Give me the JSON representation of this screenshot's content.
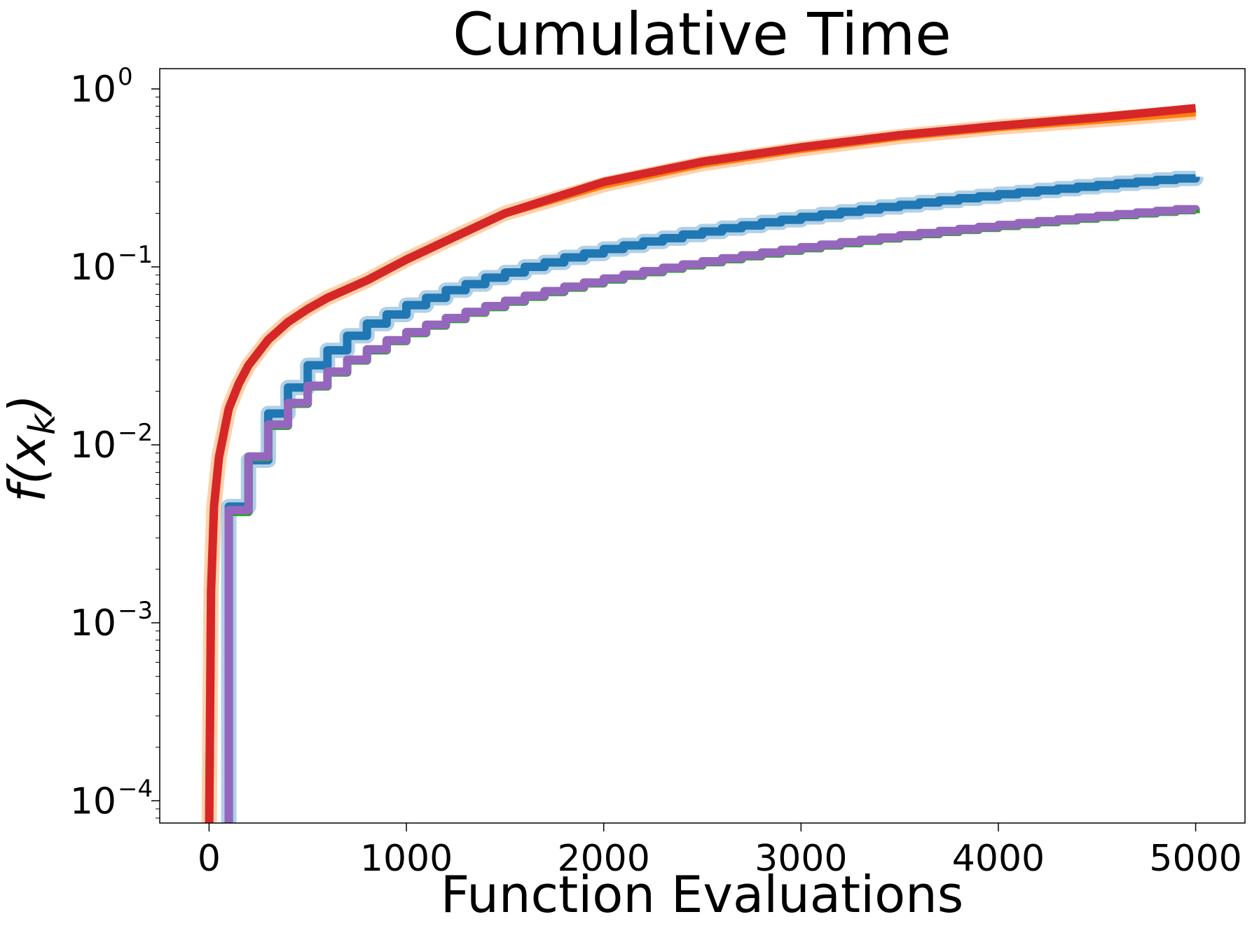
{
  "chart_data": {
    "type": "line",
    "title": "Cumulative Time",
    "xlabel": "Function Evaluations",
    "ylabel": "f(x_k)",
    "ylabel_display": {
      "base": "f(x",
      "sub": "k",
      "close": ")"
    },
    "xscale": "linear",
    "yscale": "log",
    "xlim": [
      -250,
      5250
    ],
    "ylim": [
      7.5e-05,
      1.3
    ],
    "x_ticks": [
      {
        "value": 0,
        "label": "0"
      },
      {
        "value": 1000,
        "label": "1000"
      },
      {
        "value": 2000,
        "label": "2000"
      },
      {
        "value": 3000,
        "label": "3000"
      },
      {
        "value": 4000,
        "label": "4000"
      },
      {
        "value": 5000,
        "label": "5000"
      }
    ],
    "y_ticks": [
      {
        "value": 0.0001,
        "base": "10",
        "exp": "−4"
      },
      {
        "value": 0.001,
        "base": "10",
        "exp": "−3"
      },
      {
        "value": 0.01,
        "base": "10",
        "exp": "−2"
      },
      {
        "value": 0.1,
        "base": "10",
        "exp": "−1"
      },
      {
        "value": 1,
        "base": "10",
        "exp": "0"
      }
    ],
    "grid": false,
    "legend": "none",
    "series": [
      {
        "color": "#ff7f0e",
        "style": "smooth",
        "band": true,
        "x": [
          0,
          10,
          25,
          50,
          100,
          150,
          200,
          300,
          400,
          500,
          600,
          800,
          1000,
          1500,
          2000,
          2500,
          3000,
          3500,
          4000,
          4500,
          5000
        ],
        "y": [
          6e-05,
          0.0015,
          0.0045,
          0.0085,
          0.016,
          0.022,
          0.028,
          0.039,
          0.049,
          0.058,
          0.067,
          0.084,
          0.11,
          0.2,
          0.29,
          0.38,
          0.46,
          0.54,
          0.61,
          0.67,
          0.74
        ]
      },
      {
        "color": "#d62728",
        "style": "smooth",
        "band": false,
        "x": [
          0,
          10,
          25,
          50,
          100,
          150,
          200,
          300,
          400,
          500,
          600,
          800,
          1000,
          1500,
          2000,
          2500,
          3000,
          3500,
          4000,
          4500,
          5000
        ],
        "y": [
          6e-05,
          0.0015,
          0.0045,
          0.0085,
          0.016,
          0.022,
          0.028,
          0.039,
          0.049,
          0.058,
          0.067,
          0.084,
          0.11,
          0.2,
          0.3,
          0.39,
          0.47,
          0.55,
          0.62,
          0.69,
          0.78
        ]
      },
      {
        "color": "#1f77b4",
        "style": "step",
        "band": true,
        "x": [
          100,
          200,
          300,
          400,
          500,
          600,
          700,
          800,
          900,
          1000,
          1100,
          1200,
          1300,
          1400,
          1500,
          1600,
          1700,
          1800,
          1900,
          2000,
          2100,
          2200,
          2300,
          2400,
          2500,
          2600,
          2700,
          2800,
          2900,
          3000,
          3100,
          3200,
          3300,
          3400,
          3500,
          3600,
          3700,
          3800,
          3900,
          4000,
          4100,
          4200,
          4300,
          4400,
          4500,
          4600,
          4700,
          4800,
          4900,
          5000
        ],
        "y": [
          0.0045,
          0.0082,
          0.015,
          0.021,
          0.028,
          0.034,
          0.041,
          0.048,
          0.054,
          0.061,
          0.067,
          0.074,
          0.08,
          0.087,
          0.093,
          0.1,
          0.106,
          0.113,
          0.119,
          0.126,
          0.132,
          0.139,
          0.145,
          0.152,
          0.158,
          0.165,
          0.171,
          0.178,
          0.184,
          0.191,
          0.197,
          0.204,
          0.21,
          0.217,
          0.223,
          0.23,
          0.236,
          0.243,
          0.249,
          0.256,
          0.262,
          0.269,
          0.275,
          0.282,
          0.288,
          0.295,
          0.301,
          0.308,
          0.314,
          0.321
        ]
      },
      {
        "color": "#2ca02c",
        "style": "step",
        "band": false,
        "x": [
          100,
          200,
          300,
          400,
          500,
          600,
          700,
          800,
          900,
          1000,
          1100,
          1200,
          1300,
          1400,
          1500,
          1600,
          1700,
          1800,
          1900,
          2000,
          2100,
          2200,
          2300,
          2400,
          2500,
          2600,
          2700,
          2800,
          2900,
          3000,
          3100,
          3200,
          3300,
          3400,
          3500,
          3600,
          3700,
          3800,
          3900,
          4000,
          4100,
          4200,
          4300,
          4400,
          4500,
          4600,
          4700,
          4800,
          4900,
          5000
        ],
        "y": [
          0.0042,
          0.0085,
          0.0128,
          0.017,
          0.0213,
          0.0255,
          0.0298,
          0.034,
          0.0383,
          0.0425,
          0.0468,
          0.051,
          0.0553,
          0.0595,
          0.0638,
          0.068,
          0.0723,
          0.0765,
          0.0808,
          0.085,
          0.0893,
          0.0935,
          0.0978,
          0.102,
          0.1063,
          0.1105,
          0.1148,
          0.119,
          0.1233,
          0.1275,
          0.1318,
          0.136,
          0.1403,
          0.1445,
          0.1488,
          0.153,
          0.1573,
          0.1615,
          0.1658,
          0.17,
          0.1743,
          0.1785,
          0.1828,
          0.187,
          0.1913,
          0.1955,
          0.1998,
          0.204,
          0.2083,
          0.2
        ]
      },
      {
        "color": "#9467bd",
        "style": "step",
        "band": false,
        "x": [
          100,
          200,
          300,
          400,
          500,
          600,
          700,
          800,
          900,
          1000,
          1100,
          1200,
          1300,
          1400,
          1500,
          1600,
          1700,
          1800,
          1900,
          2000,
          2100,
          2200,
          2300,
          2400,
          2500,
          2600,
          2700,
          2800,
          2900,
          3000,
          3100,
          3200,
          3300,
          3400,
          3500,
          3600,
          3700,
          3800,
          3900,
          4000,
          4100,
          4200,
          4300,
          4400,
          4500,
          4600,
          4700,
          4800,
          4900,
          5000
        ],
        "y": [
          0.0043,
          0.0086,
          0.013,
          0.0172,
          0.0215,
          0.0258,
          0.0301,
          0.0344,
          0.0387,
          0.043,
          0.0473,
          0.0516,
          0.0559,
          0.0602,
          0.0645,
          0.0688,
          0.0731,
          0.0774,
          0.0817,
          0.086,
          0.0903,
          0.0946,
          0.0989,
          0.1032,
          0.1075,
          0.1118,
          0.1161,
          0.1204,
          0.1247,
          0.129,
          0.1333,
          0.1376,
          0.1419,
          0.1462,
          0.1505,
          0.1548,
          0.1591,
          0.1634,
          0.1677,
          0.172,
          0.1763,
          0.1806,
          0.1849,
          0.1892,
          0.1935,
          0.1978,
          0.2021,
          0.2064,
          0.2107,
          0.21
        ]
      }
    ]
  }
}
